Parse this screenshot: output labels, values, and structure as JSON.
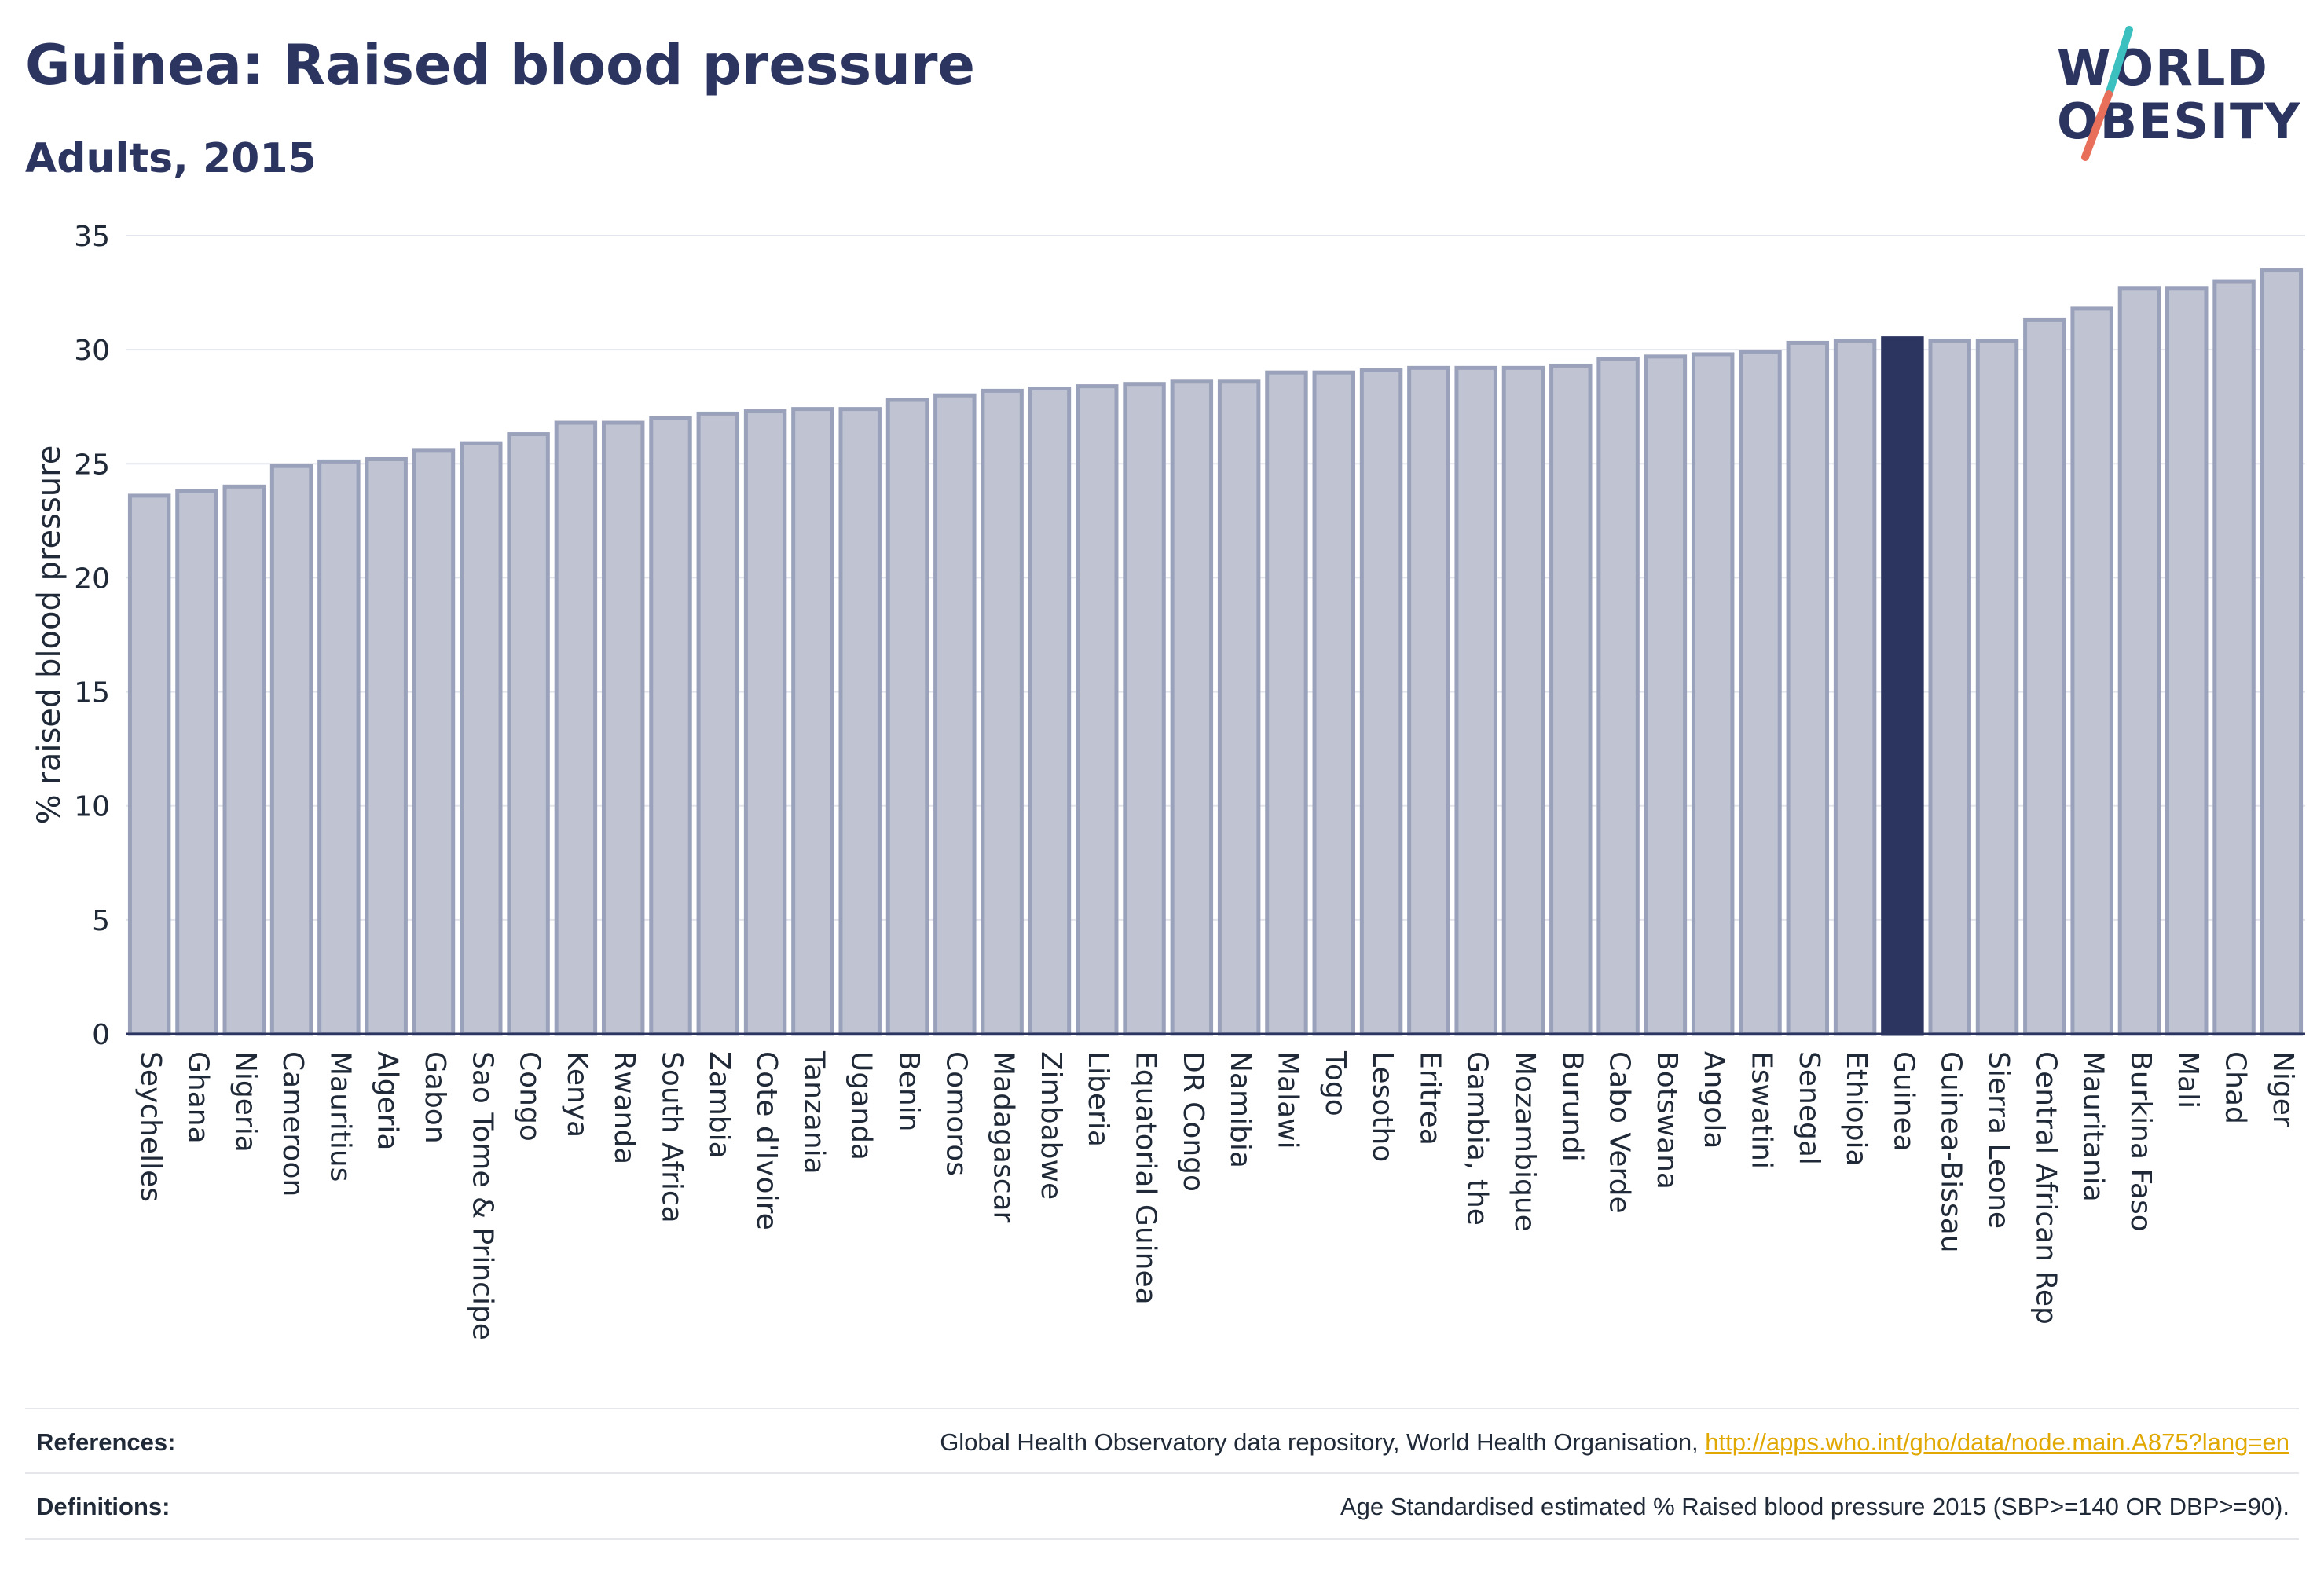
{
  "header": {
    "title": "Guinea: Raised blood pressure",
    "subtitle": "Adults, 2015"
  },
  "logo": {
    "line1": "WORLD",
    "line2": "OBESITY",
    "colors": {
      "text": "#2b3560",
      "slash_teal": "#3bbfbf",
      "slash_coral": "#e8705a"
    }
  },
  "colors": {
    "bar_fill": "#c0c4d2",
    "bar_stroke": "#9aa1ba",
    "highlight_fill": "#2b3560",
    "axis": "#2b3560",
    "grid": "#e3e5ec",
    "text": "#1f2937"
  },
  "chart_data": {
    "type": "bar",
    "title": "Guinea: Raised blood pressure",
    "subtitle": "Adults, 2015",
    "xlabel": "",
    "ylabel": "% raised blood pressure",
    "ylim": [
      0,
      35
    ],
    "yticks": [
      0,
      5,
      10,
      15,
      20,
      25,
      30,
      35
    ],
    "grid": true,
    "highlight": "Guinea",
    "categories": [
      "Seychelles",
      "Ghana",
      "Nigeria",
      "Cameroon",
      "Mauritius",
      "Algeria",
      "Gabon",
      "Sao Tome & Principe",
      "Congo",
      "Kenya",
      "Rwanda",
      "South Africa",
      "Zambia",
      "Cote d'Ivoire",
      "Tanzania",
      "Uganda",
      "Benin",
      "Comoros",
      "Madagascar",
      "Zimbabwe",
      "Liberia",
      "Equatorial Guinea",
      "DR Congo",
      "Namibia",
      "Malawi",
      "Togo",
      "Lesotho",
      "Eritrea",
      "Gambia, the",
      "Mozambique",
      "Burundi",
      "Cabo Verde",
      "Botswana",
      "Angola",
      "Eswatini",
      "Senegal",
      "Ethiopia",
      "Guinea",
      "Guinea-Bissau",
      "Sierra Leone",
      "Central African Rep",
      "Mauritania",
      "Burkina Faso",
      "Mali",
      "Chad",
      "Niger"
    ],
    "values": [
      23.6,
      23.8,
      24.0,
      24.9,
      25.1,
      25.2,
      25.6,
      25.9,
      26.3,
      26.8,
      26.8,
      27.0,
      27.2,
      27.3,
      27.4,
      27.4,
      27.8,
      28.0,
      28.2,
      28.3,
      28.4,
      28.5,
      28.6,
      28.6,
      29.0,
      29.0,
      29.1,
      29.2,
      29.2,
      29.2,
      29.3,
      29.6,
      29.7,
      29.8,
      29.9,
      30.3,
      30.4,
      30.5,
      30.4,
      30.4,
      31.3,
      31.8,
      32.7,
      32.7,
      33.0,
      33.5
    ]
  },
  "footer": {
    "references_label": "References:",
    "references_text": "Global Health Observatory data repository, World Health Organisation, ",
    "references_link": "http://apps.who.int/gho/data/node.main.A875?lang=en",
    "definitions_label": "Definitions:",
    "definitions_text": "Age Standardised estimated % Raised blood pressure 2015 (SBP>=140 OR DBP>=90)."
  }
}
